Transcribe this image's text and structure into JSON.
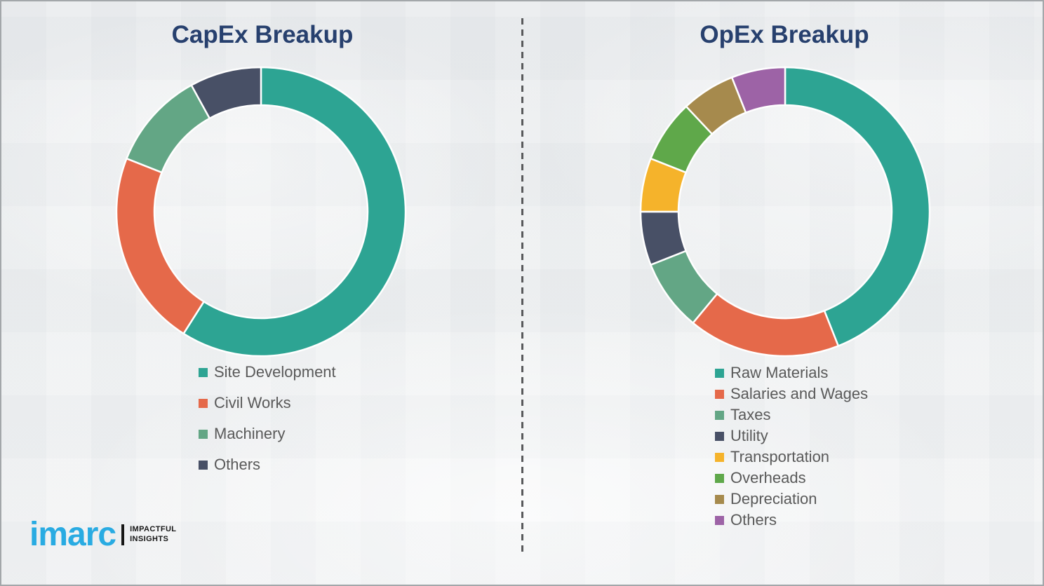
{
  "colors": {
    "background": "#eef0f2",
    "title": "#27406E",
    "legend_text": "#595959",
    "divider": "#58595b",
    "logo_blue": "#29ABE2",
    "logo_black": "#161616"
  },
  "chart_data": [
    {
      "type": "pie",
      "subtype": "donut",
      "title": "CapEx Breakup",
      "categories": [
        "Site Development",
        "Civil Works",
        "Machinery",
        "Others"
      ],
      "values": [
        59,
        22,
        11,
        8
      ],
      "unit": "percent",
      "colors": [
        "#2DA493",
        "#E5694A",
        "#63A685",
        "#485066"
      ],
      "start_angle_deg": 0,
      "direction": "clockwise",
      "legend_position": "below-left",
      "data_labels": false
    },
    {
      "type": "pie",
      "subtype": "donut",
      "title": "OpEx Breakup",
      "categories": [
        "Raw Materials",
        "Salaries and Wages",
        "Taxes",
        "Utility",
        "Transportation",
        "Overheads",
        "Depreciation",
        "Others"
      ],
      "values": [
        44,
        17,
        8,
        6,
        6,
        7,
        6,
        6
      ],
      "unit": "percent",
      "colors": [
        "#2DA493",
        "#E5694A",
        "#63A685",
        "#485066",
        "#F5B32B",
        "#5FA84A",
        "#A68A4D",
        "#9D63A6"
      ],
      "start_angle_deg": 0,
      "direction": "clockwise",
      "legend_position": "below-left",
      "data_labels": false
    }
  ],
  "logo": {
    "brand": "imarc",
    "tagline_line1": "IMPACTFUL",
    "tagline_line2": "INSIGHTS"
  }
}
